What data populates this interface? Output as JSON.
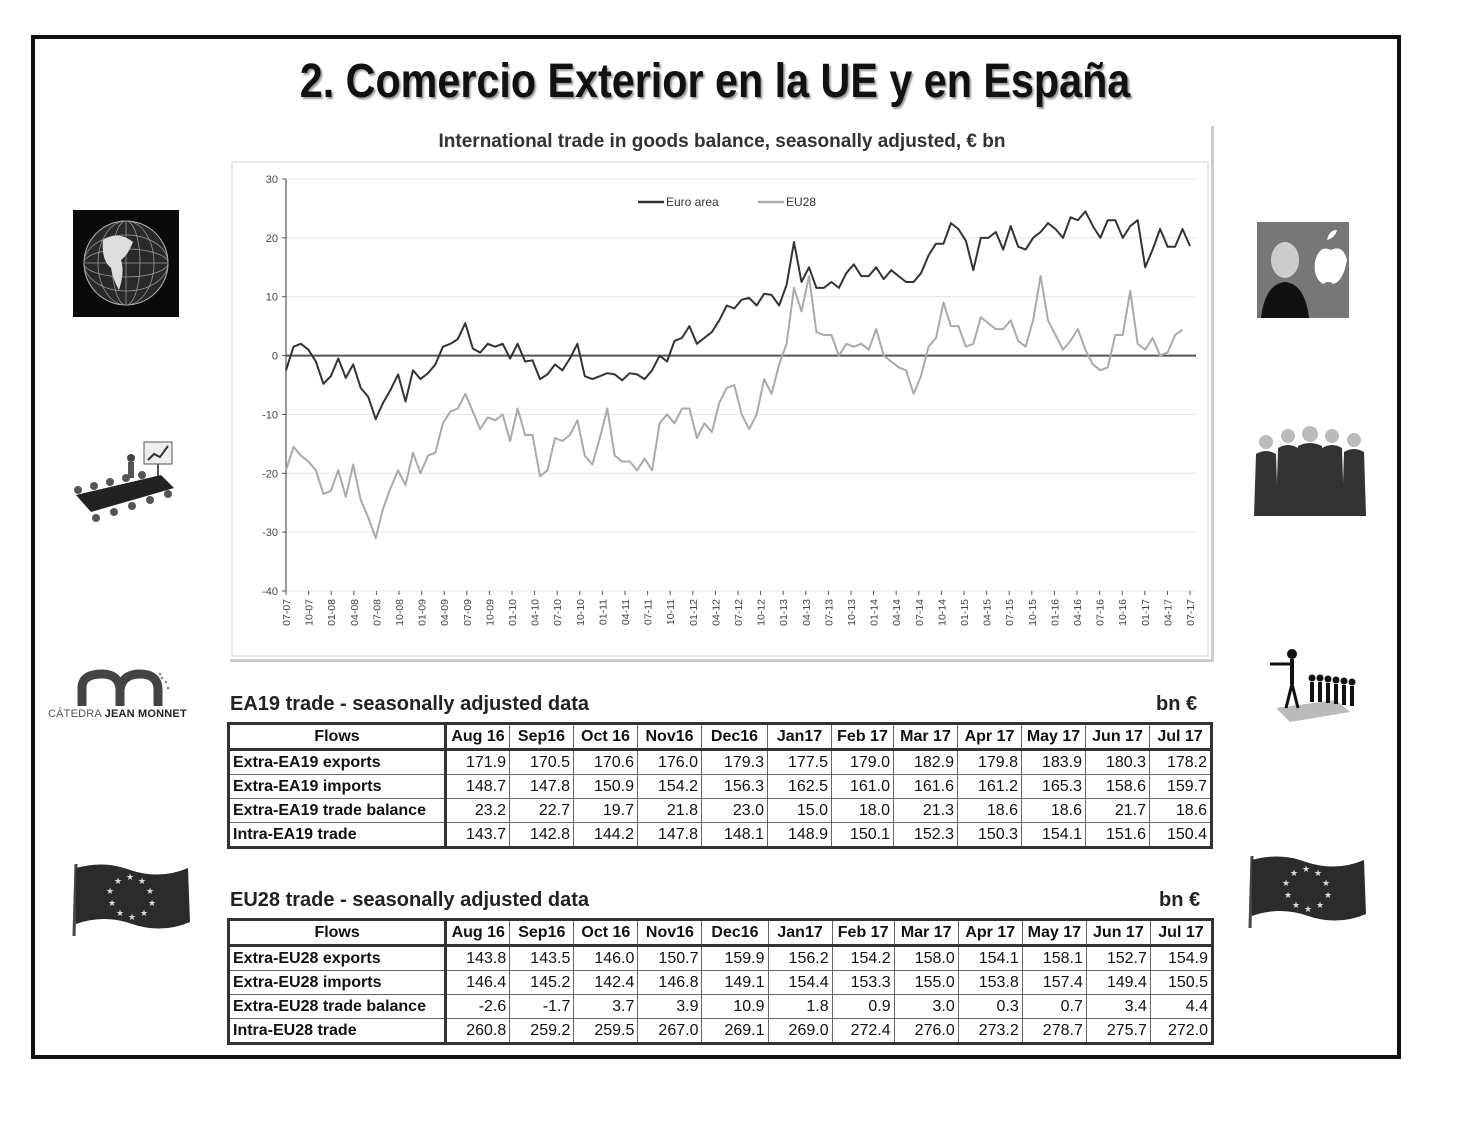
{
  "slide": {
    "title": "2. Comercio Exterior en la UE y en España",
    "logo_text_light": "CÁTEDRA",
    "logo_text_bold": "JEAN MONNET"
  },
  "chart_data": {
    "type": "line",
    "title": "International trade in goods balance, seasonally adjusted, € bn",
    "ylim": [
      -40,
      30
    ],
    "yticks": [
      30,
      20,
      10,
      0,
      -10,
      -20,
      -30,
      -40
    ],
    "grid": true,
    "legend_position": "top-center",
    "x_tick_labels": [
      "07-07",
      "10-07",
      "01-08",
      "04-08",
      "07-08",
      "10-08",
      "01-09",
      "04-09",
      "07-09",
      "10-09",
      "01-10",
      "04-10",
      "07-10",
      "10-10",
      "01-11",
      "04-11",
      "07-11",
      "10-11",
      "01-12",
      "04-12",
      "07-12",
      "10-12",
      "01-13",
      "04-13",
      "07-13",
      "10-13",
      "01-14",
      "04-14",
      "07-14",
      "10-14",
      "01-15",
      "04-15",
      "07-15",
      "10-15",
      "01-16",
      "04-16",
      "07-16",
      "10-16",
      "01-17",
      "04-17",
      "07-17"
    ],
    "series": [
      {
        "name": "Euro area",
        "color": "#333333",
        "values": [
          -2.5,
          1.5,
          2.0,
          1.0,
          -1.0,
          -4.8,
          -3.5,
          -0.5,
          -3.8,
          -1.5,
          -5.5,
          -7.0,
          -10.8,
          -8.0,
          -5.8,
          -3.2,
          -7.8,
          -2.5,
          -4.0,
          -3.0,
          -1.5,
          1.5,
          2.0,
          2.8,
          5.5,
          1.2,
          0.5,
          2.0,
          1.5,
          2.0,
          -0.5,
          2.0,
          -1.0,
          -0.8,
          -4.0,
          -3.2,
          -1.5,
          -2.5,
          -0.5,
          2.0,
          -3.5,
          -4.0,
          -3.5,
          -3.0,
          -3.2,
          -4.2,
          -3.0,
          -3.2,
          -4.0,
          -2.5,
          0.0,
          -1.0,
          2.5,
          3.0,
          5.0,
          2.0,
          3.0,
          4.0,
          6.0,
          8.5,
          8.0,
          9.5,
          9.8,
          8.5,
          10.5,
          10.3,
          8.5,
          12.0,
          19.3,
          12.5,
          15.0,
          11.5,
          11.5,
          12.5,
          11.5,
          14.0,
          15.5,
          13.5,
          13.5,
          15.0,
          13.0,
          14.5,
          13.5,
          12.5,
          12.5,
          14.0,
          17.0,
          19.0,
          19.0,
          22.5,
          21.5,
          19.5,
          14.5,
          20.0,
          20.0,
          21.0,
          18.0,
          22.0,
          18.5,
          18.0,
          20.0,
          21.0,
          22.5,
          21.5,
          20.0,
          23.5,
          23.0,
          24.5,
          22.0,
          20.0,
          23.0,
          23.0,
          20.0,
          22.0,
          23.0,
          15.0,
          18.0,
          21.5,
          18.5,
          18.5,
          21.5,
          18.6
        ]
      },
      {
        "name": "EU28",
        "color": "#aaaaaa",
        "values": [
          -19.5,
          -15.5,
          -17.0,
          -18.0,
          -19.5,
          -23.5,
          -23.0,
          -19.5,
          -24.0,
          -18.5,
          -24.5,
          -27.5,
          -31.0,
          -26.0,
          -22.5,
          -19.5,
          -22.0,
          -16.5,
          -20.0,
          -17.0,
          -16.5,
          -11.5,
          -9.5,
          -9.0,
          -6.5,
          -9.5,
          -12.5,
          -10.5,
          -11.0,
          -10.0,
          -14.5,
          -9.0,
          -13.5,
          -13.5,
          -20.5,
          -19.5,
          -14.0,
          -14.5,
          -13.5,
          -11.0,
          -17.0,
          -18.5,
          -14.0,
          -9.0,
          -17.0,
          -18.0,
          -18.0,
          -19.5,
          -17.5,
          -19.5,
          -11.5,
          -10.0,
          -11.5,
          -9.0,
          -9.0,
          -14.0,
          -11.5,
          -13.0,
          -8.0,
          -5.5,
          -5.0,
          -10.0,
          -12.5,
          -10.0,
          -4.0,
          -6.5,
          -1.5,
          2.0,
          11.5,
          7.5,
          13.5,
          4.0,
          3.5,
          3.5,
          0.0,
          2.0,
          1.5,
          2.0,
          1.0,
          4.5,
          0.0,
          -1.0,
          -2.0,
          -2.5,
          -6.5,
          -3.5,
          1.5,
          3.0,
          9.0,
          5.0,
          5.0,
          1.5,
          2.0,
          6.5,
          5.5,
          4.5,
          4.5,
          6.0,
          2.5,
          1.5,
          6.0,
          13.5,
          6.0,
          3.5,
          1.0,
          2.5,
          4.5,
          1.0,
          -1.5,
          -2.5,
          -2.0,
          3.5,
          3.5,
          11.0,
          2.0,
          1.0,
          3.0,
          0.0,
          0.5,
          3.5,
          4.4
        ]
      }
    ]
  },
  "ea19_table": {
    "title": "EA19 trade - seasonally adjusted data",
    "unit": "bn €",
    "columns": [
      "Flows",
      "Aug 16",
      "Sep16",
      "Oct 16",
      "Nov16",
      "Dec16",
      "Jan17",
      "Feb 17",
      "Mar 17",
      "Apr 17",
      "May 17",
      "Jun 17",
      "Jul 17"
    ],
    "rows": [
      {
        "flow": "Extra-EA19 exports",
        "values": [
          "171.9",
          "170.5",
          "170.6",
          "176.0",
          "179.3",
          "177.5",
          "179.0",
          "182.9",
          "179.8",
          "183.9",
          "180.3",
          "178.2"
        ]
      },
      {
        "flow": "Extra-EA19 imports",
        "values": [
          "148.7",
          "147.8",
          "150.9",
          "154.2",
          "156.3",
          "162.5",
          "161.0",
          "161.6",
          "161.2",
          "165.3",
          "158.6",
          "159.7"
        ]
      },
      {
        "flow": "Extra-EA19 trade balance",
        "values": [
          "23.2",
          "22.7",
          "19.7",
          "21.8",
          "23.0",
          "15.0",
          "18.0",
          "21.3",
          "18.6",
          "18.6",
          "21.7",
          "18.6"
        ]
      },
      {
        "flow": "Intra-EA19 trade",
        "values": [
          "143.7",
          "142.8",
          "144.2",
          "147.8",
          "148.1",
          "148.9",
          "150.1",
          "152.3",
          "150.3",
          "154.1",
          "151.6",
          "150.4"
        ]
      }
    ]
  },
  "eu28_table": {
    "title": "EU28 trade - seasonally adjusted data",
    "unit": "bn €",
    "columns": [
      "Flows",
      "Aug 16",
      "Sep16",
      "Oct 16",
      "Nov16",
      "Dec16",
      "Jan17",
      "Feb 17",
      "Mar 17",
      "Apr 17",
      "May 17",
      "Jun 17",
      "Jul 17"
    ],
    "rows": [
      {
        "flow": "Extra-EU28 exports",
        "values": [
          "143.8",
          "143.5",
          "146.0",
          "150.7",
          "159.9",
          "156.2",
          "154.2",
          "158.0",
          "154.1",
          "158.1",
          "152.7",
          "154.9"
        ]
      },
      {
        "flow": "Extra-EU28 imports",
        "values": [
          "146.4",
          "145.2",
          "142.4",
          "146.8",
          "149.1",
          "154.4",
          "153.3",
          "155.0",
          "153.8",
          "157.4",
          "149.4",
          "150.5"
        ]
      },
      {
        "flow": "Extra-EU28 trade balance",
        "values": [
          "-2.6",
          "-1.7",
          "3.7",
          "3.9",
          "10.9",
          "1.8",
          "0.9",
          "3.0",
          "0.3",
          "0.7",
          "3.4",
          "4.4"
        ]
      },
      {
        "flow": "Intra-EU28 trade",
        "values": [
          "260.8",
          "259.2",
          "259.5",
          "267.0",
          "269.1",
          "269.0",
          "272.4",
          "276.0",
          "273.2",
          "278.7",
          "275.7",
          "272.0"
        ]
      }
    ]
  }
}
